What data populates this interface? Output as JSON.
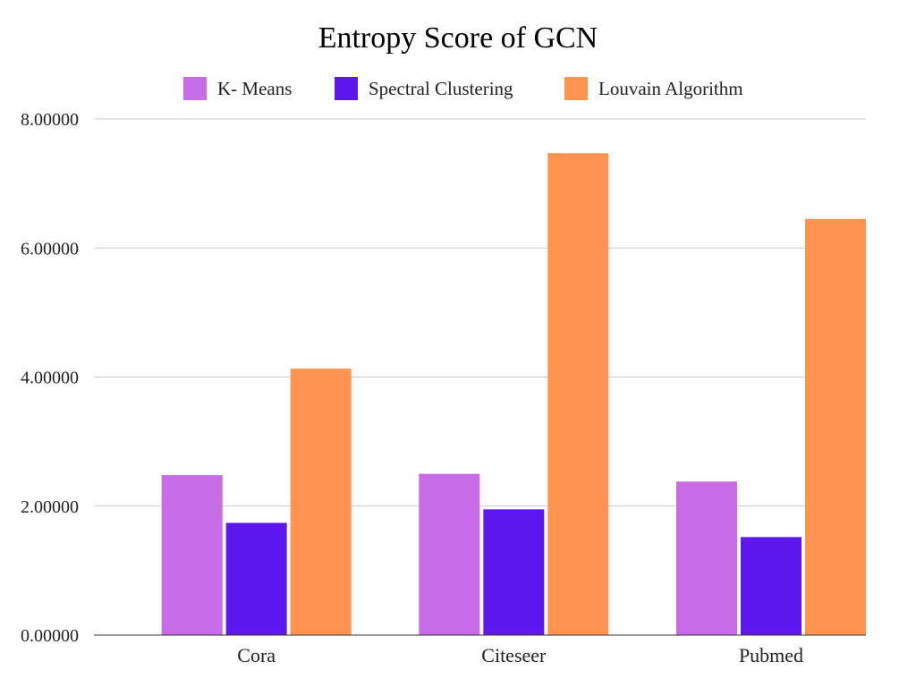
{
  "chart_data": {
    "type": "bar",
    "title": "Entropy Score of GCN",
    "xlabel": "",
    "ylabel": "",
    "categories": [
      "Cora",
      "Citeseer",
      "Pubmed"
    ],
    "series": [
      {
        "name": "K- Means",
        "values": [
          2.48,
          2.5,
          2.38
        ]
      },
      {
        "name": "Spectral Clustering",
        "values": [
          1.74,
          1.95,
          1.52
        ]
      },
      {
        "name": "Louvain Algorithm",
        "values": [
          4.13,
          7.47,
          6.45
        ]
      }
    ],
    "colors": [
      "#c76be6",
      "#5f17ef",
      "#ff934f"
    ],
    "ylim": [
      0,
      8
    ],
    "yticks": [
      0,
      2,
      4,
      6,
      8
    ],
    "ytick_labels": [
      "0.00000",
      "2.00000",
      "4.00000",
      "6.00000",
      "8.00000"
    ],
    "grid": true,
    "legend_position": "top"
  }
}
